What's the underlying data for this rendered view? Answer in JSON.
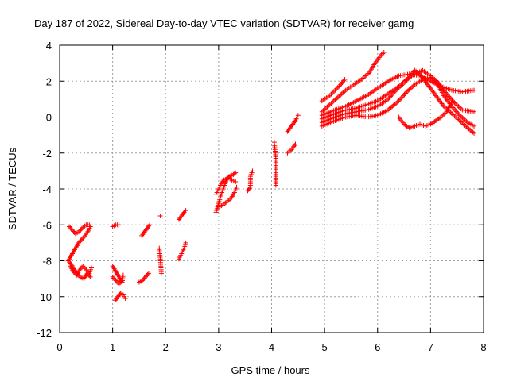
{
  "chart_data": {
    "type": "scatter",
    "title": "Day 187 of 2022, Sidereal Day-to-day VTEC variation (SDTVAR) for receiver gamg",
    "xlabel": "GPS time / hours",
    "ylabel": "SDTVAR / TECUs",
    "xlim": [
      0,
      8
    ],
    "ylim": [
      -12,
      4
    ],
    "xticks": [
      "0",
      "1",
      "2",
      "3",
      "4",
      "5",
      "6",
      "7",
      "8"
    ],
    "yticks": [
      "-12",
      "-10",
      "-8",
      "-6",
      "-4",
      "-2",
      "0",
      "2",
      "4"
    ],
    "grid": true,
    "marker": "+",
    "marker_color": "#ff0000",
    "tracks": [
      [
        [
          0.18,
          -6.1
        ],
        [
          0.24,
          -6.3
        ],
        [
          0.3,
          -6.5
        ],
        [
          0.36,
          -6.4
        ],
        [
          0.42,
          -6.2
        ],
        [
          0.5,
          -6.0
        ],
        [
          0.56,
          -6.0
        ]
      ],
      [
        [
          0.18,
          -7.9
        ],
        [
          0.24,
          -7.6
        ],
        [
          0.3,
          -7.3
        ],
        [
          0.36,
          -7.0
        ],
        [
          0.42,
          -6.8
        ],
        [
          0.48,
          -6.6
        ],
        [
          0.55,
          -6.3
        ],
        [
          0.58,
          -6.1
        ]
      ],
      [
        [
          0.2,
          -8.3
        ],
        [
          0.26,
          -8.6
        ],
        [
          0.32,
          -8.8
        ],
        [
          0.38,
          -8.5
        ],
        [
          0.44,
          -8.3
        ],
        [
          0.5,
          -8.5
        ],
        [
          0.56,
          -8.7
        ],
        [
          0.6,
          -8.4
        ]
      ],
      [
        [
          0.16,
          -8.0
        ],
        [
          0.22,
          -8.2
        ],
        [
          0.3,
          -8.6
        ],
        [
          0.38,
          -8.9
        ],
        [
          0.46,
          -9.0
        ],
        [
          0.52,
          -8.7
        ],
        [
          0.58,
          -8.9
        ]
      ],
      [
        [
          1.0,
          -6.1
        ],
        [
          1.06,
          -6.0
        ],
        [
          1.12,
          -6.0
        ]
      ],
      [
        [
          1.0,
          -8.3
        ],
        [
          1.06,
          -8.6
        ],
        [
          1.12,
          -8.9
        ],
        [
          1.18,
          -9.2
        ],
        [
          1.2,
          -8.8
        ]
      ],
      [
        [
          1.0,
          -8.9
        ],
        [
          1.06,
          -9.1
        ],
        [
          1.12,
          -9.3
        ],
        [
          1.18,
          -9.1
        ]
      ],
      [
        [
          1.05,
          -10.2
        ],
        [
          1.1,
          -10.0
        ],
        [
          1.15,
          -9.8
        ],
        [
          1.2,
          -9.9
        ],
        [
          1.24,
          -10.1
        ]
      ],
      [
        [
          1.55,
          -6.6
        ],
        [
          1.6,
          -6.4
        ],
        [
          1.65,
          -6.2
        ],
        [
          1.7,
          -6.0
        ]
      ],
      [
        [
          1.5,
          -9.2
        ],
        [
          1.56,
          -9.1
        ],
        [
          1.62,
          -8.9
        ],
        [
          1.68,
          -8.7
        ]
      ],
      [
        [
          1.9,
          -5.5
        ]
      ],
      [
        [
          1.88,
          -7.3
        ],
        [
          1.9,
          -7.9
        ],
        [
          1.92,
          -8.7
        ]
      ],
      [
        [
          2.25,
          -5.7
        ],
        [
          2.3,
          -5.5
        ],
        [
          2.35,
          -5.3
        ],
        [
          2.38,
          -5.2
        ]
      ],
      [
        [
          2.25,
          -7.9
        ],
        [
          2.3,
          -7.6
        ],
        [
          2.35,
          -7.3
        ],
        [
          2.38,
          -7.0
        ]
      ],
      [
        [
          2.95,
          -5.3
        ],
        [
          3.0,
          -4.8
        ],
        [
          3.05,
          -4.3
        ],
        [
          3.1,
          -3.9
        ],
        [
          3.15,
          -3.5
        ],
        [
          3.2,
          -3.3
        ],
        [
          3.28,
          -3.2
        ],
        [
          3.32,
          -3.1
        ]
      ],
      [
        [
          2.95,
          -4.3
        ],
        [
          3.0,
          -4.0
        ],
        [
          3.05,
          -3.7
        ],
        [
          3.1,
          -3.5
        ],
        [
          3.18,
          -3.4
        ],
        [
          3.25,
          -3.5
        ],
        [
          3.32,
          -3.6
        ]
      ],
      [
        [
          3.0,
          -5.0
        ],
        [
          3.08,
          -4.9
        ],
        [
          3.16,
          -4.7
        ],
        [
          3.24,
          -4.5
        ],
        [
          3.3,
          -4.2
        ],
        [
          3.34,
          -3.9
        ]
      ],
      [
        [
          3.55,
          -4.1
        ],
        [
          3.6,
          -3.9
        ],
        [
          3.6,
          -3.3
        ],
        [
          3.64,
          -3.0
        ]
      ],
      [
        [
          4.05,
          -1.4
        ],
        [
          4.08,
          -2.3
        ],
        [
          4.08,
          -3.8
        ]
      ],
      [
        [
          4.3,
          -0.8
        ],
        [
          4.35,
          -0.6
        ],
        [
          4.4,
          -0.4
        ],
        [
          4.45,
          -0.2
        ],
        [
          4.5,
          0.1
        ]
      ],
      [
        [
          4.3,
          -2.0
        ],
        [
          4.38,
          -1.8
        ],
        [
          4.45,
          -1.5
        ]
      ],
      [
        [
          4.95,
          0.3
        ],
        [
          5.1,
          0.7
        ],
        [
          5.25,
          1.1
        ],
        [
          5.4,
          1.5
        ],
        [
          5.55,
          1.8
        ],
        [
          5.7,
          2.1
        ],
        [
          5.85,
          2.5
        ],
        [
          5.95,
          3.0
        ],
        [
          6.05,
          3.4
        ],
        [
          6.12,
          3.6
        ]
      ],
      [
        [
          4.95,
          0.9
        ],
        [
          5.1,
          1.2
        ],
        [
          5.2,
          1.5
        ],
        [
          5.3,
          1.8
        ],
        [
          5.38,
          2.1
        ]
      ],
      [
        [
          4.95,
          0.1
        ],
        [
          5.2,
          0.4
        ],
        [
          5.4,
          0.6
        ],
        [
          5.6,
          0.9
        ],
        [
          5.8,
          1.2
        ],
        [
          6.0,
          1.6
        ],
        [
          6.2,
          2.0
        ],
        [
          6.4,
          2.3
        ],
        [
          6.6,
          2.4
        ],
        [
          6.8,
          2.3
        ],
        [
          7.0,
          2.0
        ],
        [
          7.2,
          1.7
        ],
        [
          7.4,
          1.5
        ],
        [
          7.6,
          1.4
        ],
        [
          7.82,
          1.5
        ]
      ],
      [
        [
          4.95,
          -0.3
        ],
        [
          5.2,
          0.0
        ],
        [
          5.4,
          0.2
        ],
        [
          5.6,
          0.3
        ],
        [
          5.8,
          0.4
        ],
        [
          6.0,
          0.6
        ],
        [
          6.2,
          1.0
        ],
        [
          6.35,
          1.5
        ],
        [
          6.5,
          1.9
        ],
        [
          6.6,
          2.2
        ],
        [
          6.7,
          2.6
        ],
        [
          6.8,
          2.4
        ],
        [
          6.95,
          1.8
        ],
        [
          7.1,
          1.2
        ],
        [
          7.25,
          0.6
        ],
        [
          7.4,
          0.2
        ],
        [
          7.55,
          -0.2
        ],
        [
          7.7,
          -0.6
        ],
        [
          7.82,
          -0.9
        ]
      ],
      [
        [
          4.95,
          -0.5
        ],
        [
          5.2,
          -0.2
        ],
        [
          5.4,
          0.0
        ],
        [
          5.6,
          0.1
        ],
        [
          5.8,
          0.0
        ],
        [
          6.0,
          0.1
        ],
        [
          6.2,
          0.4
        ],
        [
          6.4,
          0.9
        ],
        [
          6.55,
          1.4
        ],
        [
          6.7,
          1.8
        ],
        [
          6.85,
          2.1
        ],
        [
          7.0,
          2.2
        ],
        [
          7.1,
          2.0
        ],
        [
          7.25,
          1.2
        ],
        [
          7.4,
          0.6
        ],
        [
          7.55,
          0.1
        ],
        [
          7.7,
          -0.3
        ],
        [
          7.82,
          -0.5
        ]
      ],
      [
        [
          4.95,
          -0.1
        ],
        [
          5.2,
          0.2
        ],
        [
          5.4,
          0.4
        ],
        [
          5.6,
          0.5
        ],
        [
          5.8,
          0.7
        ],
        [
          6.0,
          0.9
        ],
        [
          6.2,
          1.3
        ],
        [
          6.4,
          1.7
        ],
        [
          6.55,
          2.1
        ],
        [
          6.7,
          2.4
        ],
        [
          6.85,
          2.6
        ],
        [
          7.0,
          2.3
        ],
        [
          7.15,
          1.9
        ],
        [
          7.3,
          1.3
        ],
        [
          7.45,
          0.8
        ],
        [
          7.6,
          0.4
        ],
        [
          7.82,
          0.3
        ]
      ],
      [
        [
          6.4,
          0.0
        ],
        [
          6.5,
          -0.4
        ],
        [
          6.6,
          -0.6
        ],
        [
          6.7,
          -0.5
        ],
        [
          6.8,
          -0.4
        ],
        [
          6.9,
          -0.5
        ],
        [
          7.0,
          -0.4
        ],
        [
          7.1,
          -0.2
        ],
        [
          7.2,
          0.0
        ],
        [
          7.3,
          0.3
        ],
        [
          7.4,
          0.8
        ]
      ]
    ]
  }
}
